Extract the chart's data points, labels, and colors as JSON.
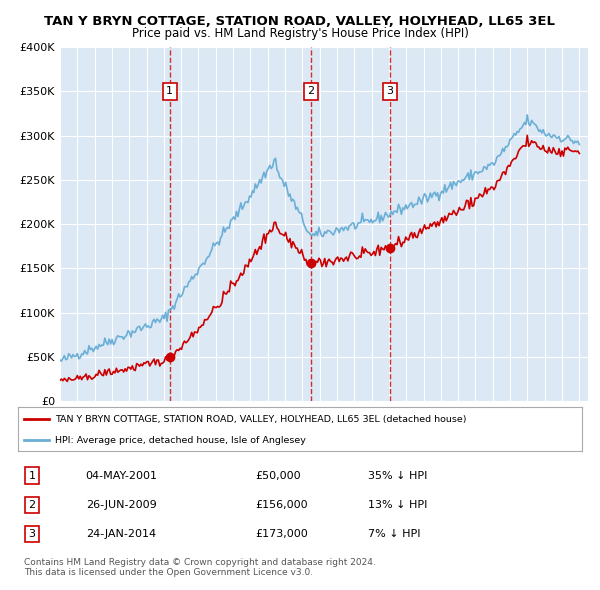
{
  "title": "TAN Y BRYN COTTAGE, STATION ROAD, VALLEY, HOLYHEAD, LL65 3EL",
  "subtitle": "Price paid vs. HM Land Registry's House Price Index (HPI)",
  "ylabel_ticks": [
    "£0",
    "£50K",
    "£100K",
    "£150K",
    "£200K",
    "£250K",
    "£300K",
    "£350K",
    "£400K"
  ],
  "ytick_values": [
    0,
    50000,
    100000,
    150000,
    200000,
    250000,
    300000,
    350000,
    400000
  ],
  "ylim": [
    0,
    400000
  ],
  "background_color": "#dce9f5",
  "plot_bg": "#dce9f5",
  "hpi_color": "#6baed6",
  "price_color": "#cc0000",
  "sale_marker_color": "#cc0000",
  "dashed_line_color": "#cc0000",
  "legend_box_color": "#cc0000",
  "sales": [
    {
      "label": 1,
      "date_str": "04-MAY-2001",
      "date_num": 2001.34,
      "price": 50000,
      "pct": "35%"
    },
    {
      "label": 2,
      "date_str": "26-JUN-2009",
      "date_num": 2009.48,
      "price": 156000,
      "pct": "13%"
    },
    {
      "label": 3,
      "date_str": "24-JAN-2014",
      "date_num": 2014.07,
      "price": 173000,
      "pct": "7%"
    }
  ],
  "legend_entries": [
    "TAN Y BRYN COTTAGE, STATION ROAD, VALLEY, HOLYHEAD, LL65 3EL (detached house)",
    "HPI: Average price, detached house, Isle of Anglesey"
  ],
  "footnote": "Contains HM Land Registry data © Crown copyright and database right 2024.\nThis data is licensed under the Open Government Licence v3.0.",
  "table_rows": [
    [
      "1",
      "04-MAY-2001",
      "£50,000",
      "35% ↓ HPI"
    ],
    [
      "2",
      "26-JUN-2009",
      "£156,000",
      "13% ↓ HPI"
    ],
    [
      "3",
      "24-JAN-2014",
      "£173,000",
      "7% ↓ HPI"
    ]
  ]
}
